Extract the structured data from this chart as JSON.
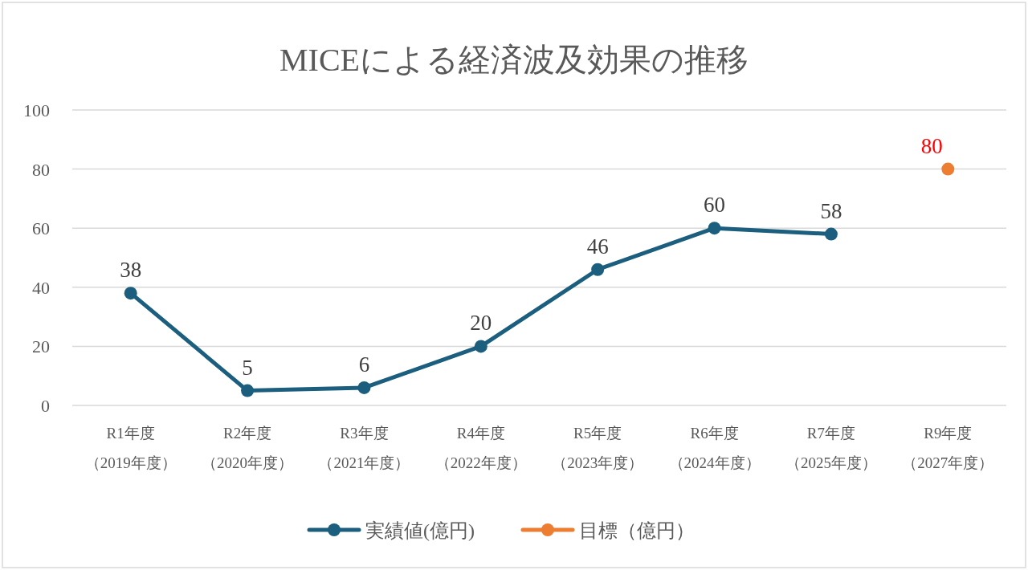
{
  "chart_data": {
    "type": "line",
    "title": "MICEによる経済波及効果の推移",
    "categories": [
      "R1年度（2019年度）",
      "R2年度（2020年度）",
      "R3年度（2021年度）",
      "R4年度（2022年度）",
      "R5年度（2023年度）",
      "R6年度（2024年度）",
      "R7年度（2025年度）",
      "R9年度（2027年度）"
    ],
    "series": [
      {
        "name": "実績値(億円)",
        "color": "#1b5e7e",
        "values": [
          38,
          5,
          6,
          20,
          46,
          60,
          58,
          null
        ]
      },
      {
        "name": "目標（億円）",
        "color": "#ed7d31",
        "values": [
          null,
          null,
          null,
          null,
          null,
          null,
          null,
          80
        ]
      }
    ],
    "ylim": [
      0,
      100
    ],
    "yticks": [
      0,
      20,
      40,
      60,
      80,
      100
    ],
    "grid": "y",
    "legend": "bottom",
    "marker": "circle",
    "line_style": "solid",
    "data_labels": true
  }
}
